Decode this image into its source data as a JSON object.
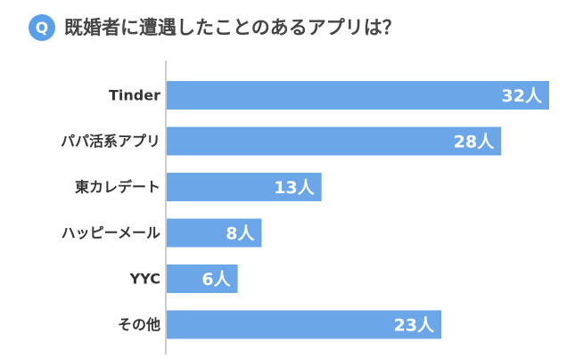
{
  "chart_data": {
    "type": "bar",
    "orientation": "horizontal",
    "title_icon": "Q",
    "title": "既婚者に遭遇したことのあるアプリは？",
    "categories": [
      "Tinder",
      "パパ活系アプリ",
      "東カレデート",
      "ハッピーメール",
      "YYC",
      "その他"
    ],
    "values": [
      32,
      28,
      13,
      8,
      6,
      23
    ],
    "value_labels": [
      "32人",
      "28人",
      "13人",
      "8人",
      "6人",
      "23人"
    ],
    "color": "#6aa6e8"
  }
}
